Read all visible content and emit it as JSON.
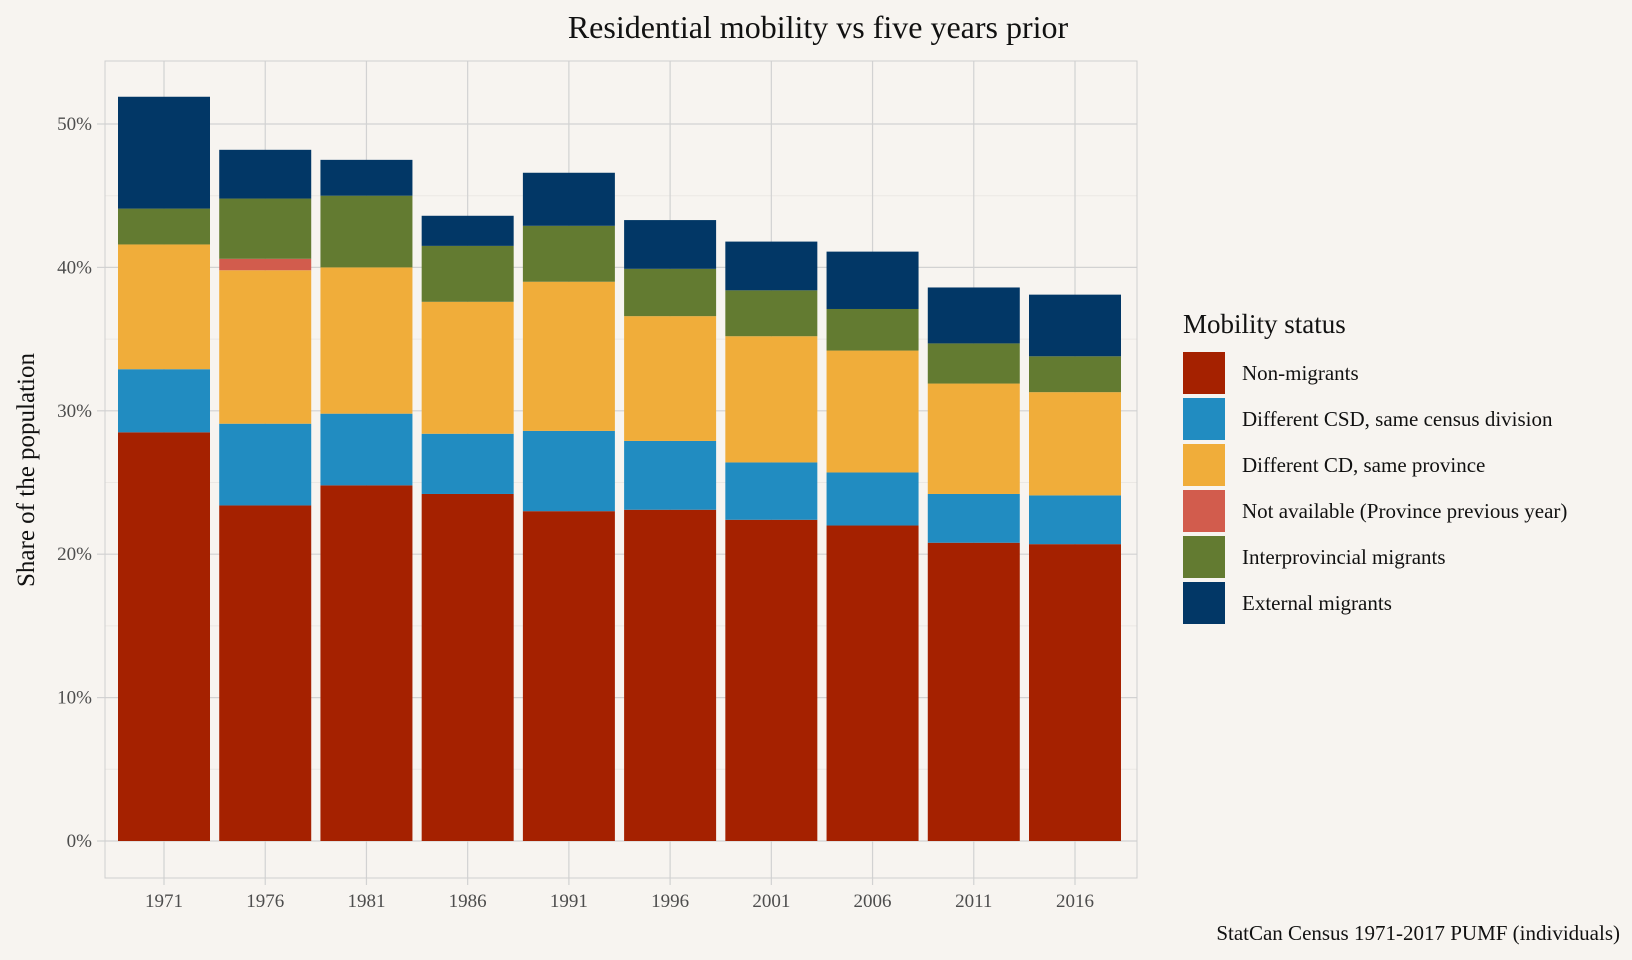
{
  "chart_data": {
    "type": "bar",
    "stacked": true,
    "title": "Residential mobility vs five years prior",
    "xlabel": "",
    "ylabel": "Share of the population",
    "caption": "StatCan Census 1971-2017 PUMF (individuals)",
    "legend_title": "Mobility status",
    "legend_position": "right",
    "grid": true,
    "ylim": [
      0,
      0.545
    ],
    "y_ticks": [
      0,
      0.1,
      0.2,
      0.3,
      0.4,
      0.5
    ],
    "y_tick_labels": [
      "0%",
      "10%",
      "20%",
      "30%",
      "40%",
      "50%"
    ],
    "categories": [
      "1971",
      "1976",
      "1981",
      "1986",
      "1991",
      "1996",
      "2001",
      "2006",
      "2011",
      "2016"
    ],
    "series": [
      {
        "name": "Non-migrants",
        "color": "#a52100",
        "values": [
          0.285,
          0.234,
          0.248,
          0.242,
          0.23,
          0.231,
          0.224,
          0.22,
          0.208,
          0.207
        ]
      },
      {
        "name": "Different CSD, same census division",
        "color": "#218cc1",
        "values": [
          0.044,
          0.057,
          0.05,
          0.042,
          0.056,
          0.048,
          0.04,
          0.037,
          0.034,
          0.034
        ]
      },
      {
        "name": "Different CD, same province",
        "color": "#f0ad3a",
        "values": [
          0.087,
          0.107,
          0.102,
          0.092,
          0.104,
          0.087,
          0.088,
          0.085,
          0.077,
          0.072
        ]
      },
      {
        "name": "Not available (Province previous year)",
        "color": "#d25c4d",
        "values": [
          0,
          0.008,
          0,
          0,
          0,
          0,
          0,
          0,
          0,
          0
        ]
      },
      {
        "name": "Interprovincial migrants",
        "color": "#637b31",
        "values": [
          0.025,
          0.042,
          0.05,
          0.039,
          0.039,
          0.033,
          0.032,
          0.029,
          0.028,
          0.025
        ]
      },
      {
        "name": "External migrants",
        "color": "#023766",
        "values": [
          0.078,
          0.034,
          0.025,
          0.021,
          0.037,
          0.034,
          0.034,
          0.04,
          0.039,
          0.043
        ]
      }
    ],
    "colors": {
      "background": "#f7f4f0",
      "grid_major": "#d2d2d2",
      "grid_minor": "#ebe8e4",
      "axis_text": "#4d4d4d"
    }
  }
}
